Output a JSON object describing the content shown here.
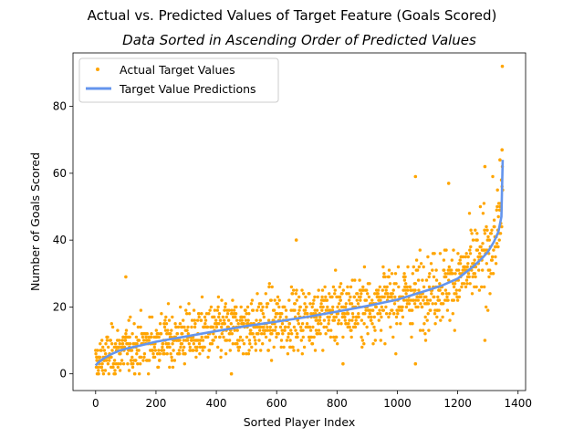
{
  "chart_data": {
    "type": "scatter",
    "title": "Actual vs. Predicted Values of Target Feature (Goals Scored)",
    "subtitle": "Data Sorted in Ascending Order of Predicted Values",
    "xlabel": "Sorted Player Index",
    "ylabel": "Number of Goals Scored",
    "xlim": [
      -75,
      1425
    ],
    "ylim": [
      -5,
      96
    ],
    "xticks": [
      0,
      200,
      400,
      600,
      800,
      1000,
      1200,
      1400
    ],
    "yticks": [
      0,
      20,
      40,
      60,
      80
    ],
    "n_points": 1350,
    "grid": false,
    "legend_position": "top-left",
    "series": [
      {
        "name": "Actual Target Values",
        "kind": "scatter",
        "color": "#FFA500",
        "description": "Approximately 1350 integer-valued goal counts scattered around the prediction curve (spread roughly ±10 goals); notable extremes: 92 at index ~1348, 67 at index ~1347, 59 at index ~1060, 57 at index ~1170, 29 at index ~100.",
        "notable_points": [
          {
            "x": 1348,
            "y": 92
          },
          {
            "x": 1347,
            "y": 67
          },
          {
            "x": 1340,
            "y": 64
          },
          {
            "x": 1060,
            "y": 59
          },
          {
            "x": 1170,
            "y": 57
          },
          {
            "x": 1290,
            "y": 62
          },
          {
            "x": 1290,
            "y": 10
          },
          {
            "x": 1060,
            "y": 3
          },
          {
            "x": 820,
            "y": 3
          },
          {
            "x": 100,
            "y": 29
          },
          {
            "x": 665,
            "y": 40
          },
          {
            "x": 450,
            "y": 0
          }
        ]
      },
      {
        "name": "Target Value Predictions",
        "kind": "line",
        "color": "#6495ED",
        "x": [
          0,
          10,
          25,
          50,
          75,
          100,
          150,
          200,
          300,
          400,
          500,
          600,
          700,
          800,
          900,
          1000,
          1100,
          1150,
          1200,
          1250,
          1280,
          1300,
          1320,
          1335,
          1345,
          1349
        ],
        "y": [
          2.5,
          3.5,
          4.5,
          5.8,
          6.8,
          7.5,
          8.5,
          9.6,
          11.2,
          12.8,
          14.3,
          15.6,
          17,
          18.6,
          20.3,
          22.2,
          25,
          26.5,
          28.5,
          32,
          34.5,
          36.5,
          39.5,
          42.5,
          47,
          64
        ]
      }
    ]
  }
}
